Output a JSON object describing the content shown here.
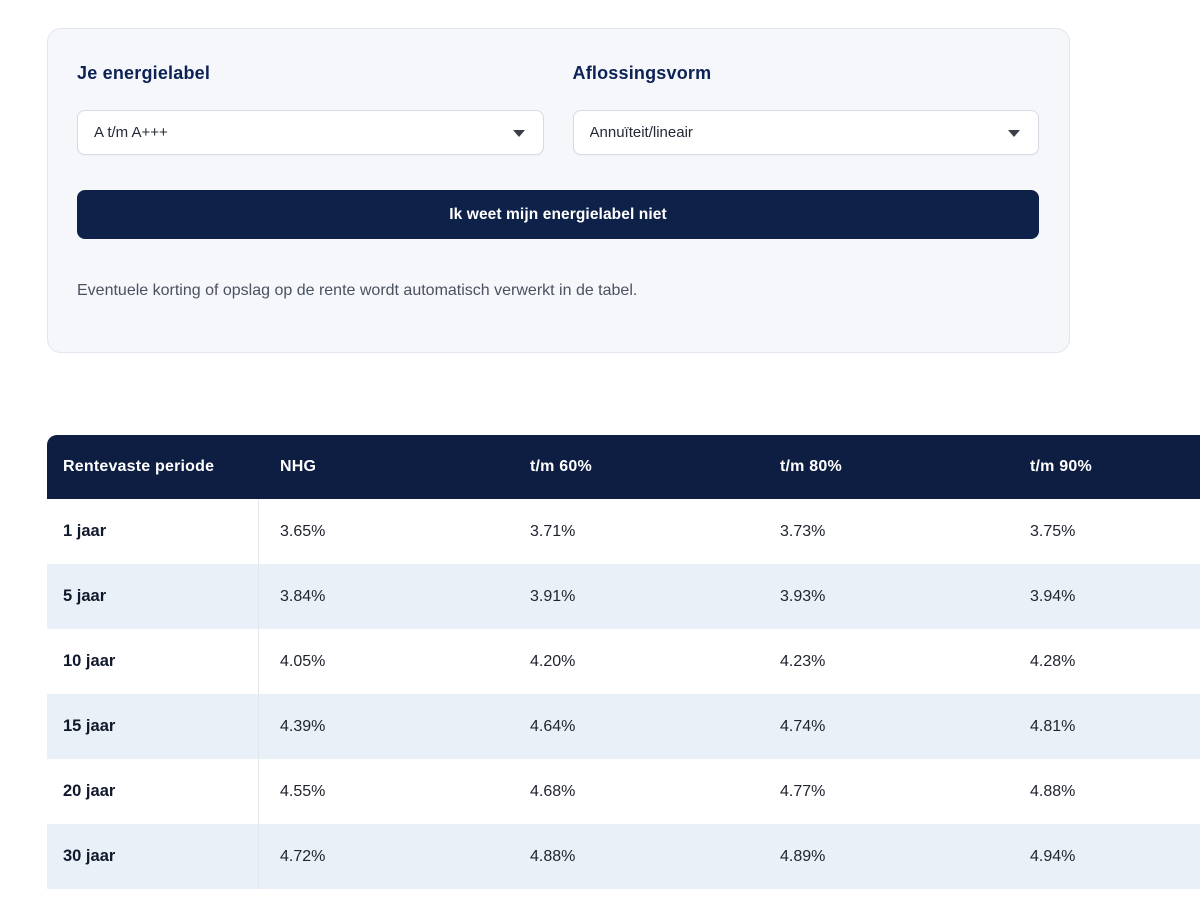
{
  "filters": {
    "energy_label": {
      "label": "Je energielabel",
      "value": "A t/m A+++"
    },
    "repayment": {
      "label": "Aflossingsvorm",
      "value": "Annuïteit/lineair"
    },
    "button_label": "Ik weet mijn energielabel niet",
    "note": "Eventuele korting of opslag op de rente wordt automatisch verwerkt in de tabel."
  },
  "rates_table": {
    "headers": [
      "Rentevaste periode",
      "NHG",
      "t/m 60%",
      "t/m 80%",
      "t/m 90%"
    ],
    "rows": [
      {
        "period": "1 jaar",
        "values": [
          "3.65%",
          "3.71%",
          "3.73%",
          "3.75%"
        ]
      },
      {
        "period": "5 jaar",
        "values": [
          "3.84%",
          "3.91%",
          "3.93%",
          "3.94%"
        ]
      },
      {
        "period": "10 jaar",
        "values": [
          "4.05%",
          "4.20%",
          "4.23%",
          "4.28%"
        ]
      },
      {
        "period": "15 jaar",
        "values": [
          "4.39%",
          "4.64%",
          "4.74%",
          "4.81%"
        ]
      },
      {
        "period": "20 jaar",
        "values": [
          "4.55%",
          "4.68%",
          "4.77%",
          "4.88%"
        ]
      },
      {
        "period": "30 jaar",
        "values": [
          "4.72%",
          "4.88%",
          "4.89%",
          "4.94%"
        ]
      }
    ]
  },
  "colors": {
    "header_navy": "#0e1e42",
    "button_navy": "#0e2149",
    "label_navy": "#0c2155",
    "row_alt_blue": "#e9f0f8",
    "card_bg": "#f5f7fa"
  }
}
